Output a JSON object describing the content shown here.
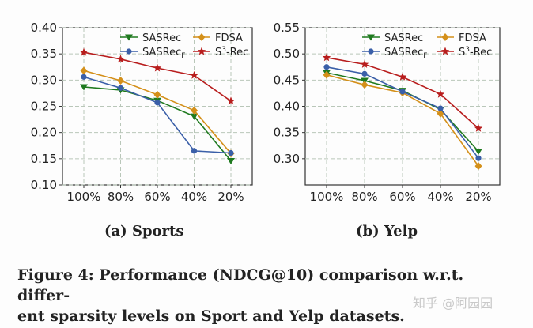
{
  "chart_data": [
    {
      "type": "line",
      "categories": [
        "100%",
        "80%",
        "60%",
        "40%",
        "20%"
      ],
      "ylim": [
        0.1,
        0.4
      ],
      "yticks": [
        "0.10",
        "0.15",
        "0.20",
        "0.25",
        "0.30",
        "0.35",
        "0.40"
      ],
      "grid": true,
      "legend_position": "top-right",
      "caption": "(a) Sports",
      "series": [
        {
          "name": "SASRec",
          "sub": "",
          "sup": "",
          "color": "#1f7a1f",
          "marker": "triangle-down",
          "values": [
            0.287,
            0.281,
            0.261,
            0.231,
            0.146
          ]
        },
        {
          "name": "FDSA",
          "sub": "",
          "sup": "",
          "color": "#d4901a",
          "marker": "diamond",
          "values": [
            0.318,
            0.299,
            0.272,
            0.242,
            0.16
          ]
        },
        {
          "name": "SASRec",
          "sub": "F",
          "sup": "",
          "color": "#3a5fa8",
          "marker": "circle",
          "values": [
            0.306,
            0.285,
            0.257,
            0.165,
            0.161
          ]
        },
        {
          "name": "S",
          "sub": "",
          "sup": "3",
          "suffix": "-Rec",
          "color": "#b81d1d",
          "marker": "star",
          "values": [
            0.353,
            0.34,
            0.323,
            0.309,
            0.26
          ]
        }
      ]
    },
    {
      "type": "line",
      "categories": [
        "100%",
        "80%",
        "60%",
        "40%",
        "20%"
      ],
      "ylim": [
        0.25,
        0.55
      ],
      "yticks": [
        "0.30",
        "0.35",
        "0.40",
        "0.45",
        "0.50",
        "0.55"
      ],
      "grid": true,
      "legend_position": "top-right",
      "caption": "(b) Yelp",
      "series": [
        {
          "name": "SASRec",
          "sub": "",
          "sup": "",
          "color": "#1f7a1f",
          "marker": "triangle-down",
          "values": [
            0.464,
            0.449,
            0.43,
            0.394,
            0.314
          ]
        },
        {
          "name": "FDSA",
          "sub": "",
          "sup": "",
          "color": "#d4901a",
          "marker": "diamond",
          "values": [
            0.46,
            0.441,
            0.426,
            0.386,
            0.286
          ]
        },
        {
          "name": "SASRec",
          "sub": "F",
          "sup": "",
          "color": "#3a5fa8",
          "marker": "circle",
          "values": [
            0.475,
            0.462,
            0.428,
            0.396,
            0.301
          ]
        },
        {
          "name": "S",
          "sub": "",
          "sup": "3",
          "suffix": "-Rec",
          "color": "#b81d1d",
          "marker": "star",
          "values": [
            0.493,
            0.48,
            0.456,
            0.423,
            0.358
          ]
        }
      ]
    }
  ],
  "figure": {
    "caption_line1": "Figure 4: Performance (NDCG@10) comparison w.r.t. differ-",
    "caption_line2": "ent sparsity levels on Sport and Yelp datasets."
  },
  "watermark": "知乎 @阿园园"
}
